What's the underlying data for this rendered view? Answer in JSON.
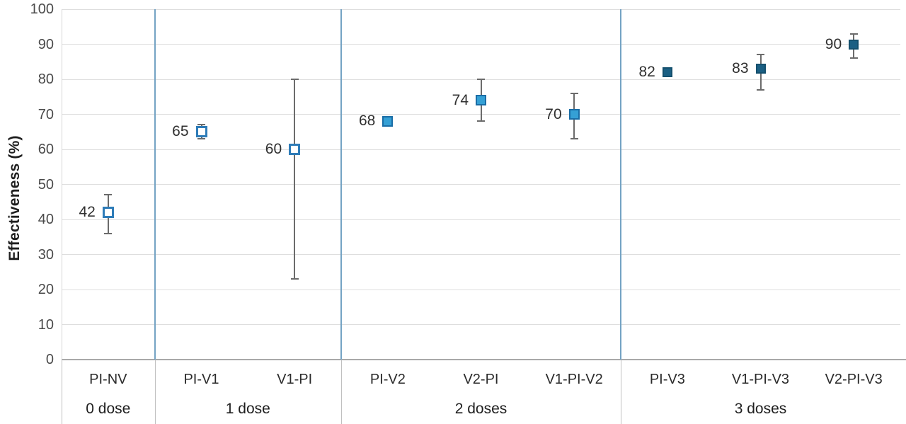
{
  "chart_data": {
    "type": "scatter",
    "title": "",
    "xlabel": "",
    "ylabel": "Effectiveness (%)",
    "ylim": [
      0,
      100
    ],
    "yticks": [
      0,
      10,
      20,
      30,
      40,
      50,
      60,
      70,
      80,
      90,
      100
    ],
    "grid": true,
    "legend": false,
    "groups": [
      {
        "label": "0 dose",
        "marker_style": "open",
        "points": [
          {
            "category": "PI-NV",
            "value": 42,
            "ci_low": 36,
            "ci_high": 47
          }
        ]
      },
      {
        "label": "1 dose",
        "marker_style": "open",
        "points": [
          {
            "category": "PI-V1",
            "value": 65,
            "ci_low": 63,
            "ci_high": 67
          },
          {
            "category": "V1-PI",
            "value": 60,
            "ci_low": 23,
            "ci_high": 80
          }
        ]
      },
      {
        "label": "2 doses",
        "marker_style": "medium",
        "points": [
          {
            "category": "PI-V2",
            "value": 68,
            "ci_low": null,
            "ci_high": null
          },
          {
            "category": "V2-PI",
            "value": 74,
            "ci_low": 68,
            "ci_high": 80
          },
          {
            "category": "V1-PI-V2",
            "value": 70,
            "ci_low": 63,
            "ci_high": 76
          }
        ]
      },
      {
        "label": "3 doses",
        "marker_style": "dark",
        "points": [
          {
            "category": "PI-V3",
            "value": 82,
            "ci_low": null,
            "ci_high": null
          },
          {
            "category": "V1-PI-V3",
            "value": 83,
            "ci_low": 77,
            "ci_high": 87
          },
          {
            "category": "V2-PI-V3",
            "value": 90,
            "ci_low": 86,
            "ci_high": 93
          }
        ]
      }
    ],
    "marker_styles": {
      "open": {
        "fill": "#ffffff",
        "border": "#2e7cb8",
        "size": 16,
        "border_width": 3
      },
      "medium": {
        "fill": "#35a0d5",
        "border": "#1a6da6",
        "size": 15,
        "border_width": 2
      },
      "dark": {
        "fill": "#1b5f83",
        "border": "#14506e",
        "size": 14,
        "border_width": 2
      }
    },
    "colors": {
      "gridline": "#dedede",
      "x_axis": "#a9a9a9",
      "y_axis": "#d4d4d4",
      "group_separator_plot": "#74a3c4",
      "group_separator_labels": "#c0c0c0",
      "error_bar": "#6b6b6b",
      "tick_label": "#4a4a4a",
      "value_label": "#303030",
      "category_label": "#2b2b2b",
      "group_label": "#1f1f1f"
    }
  }
}
